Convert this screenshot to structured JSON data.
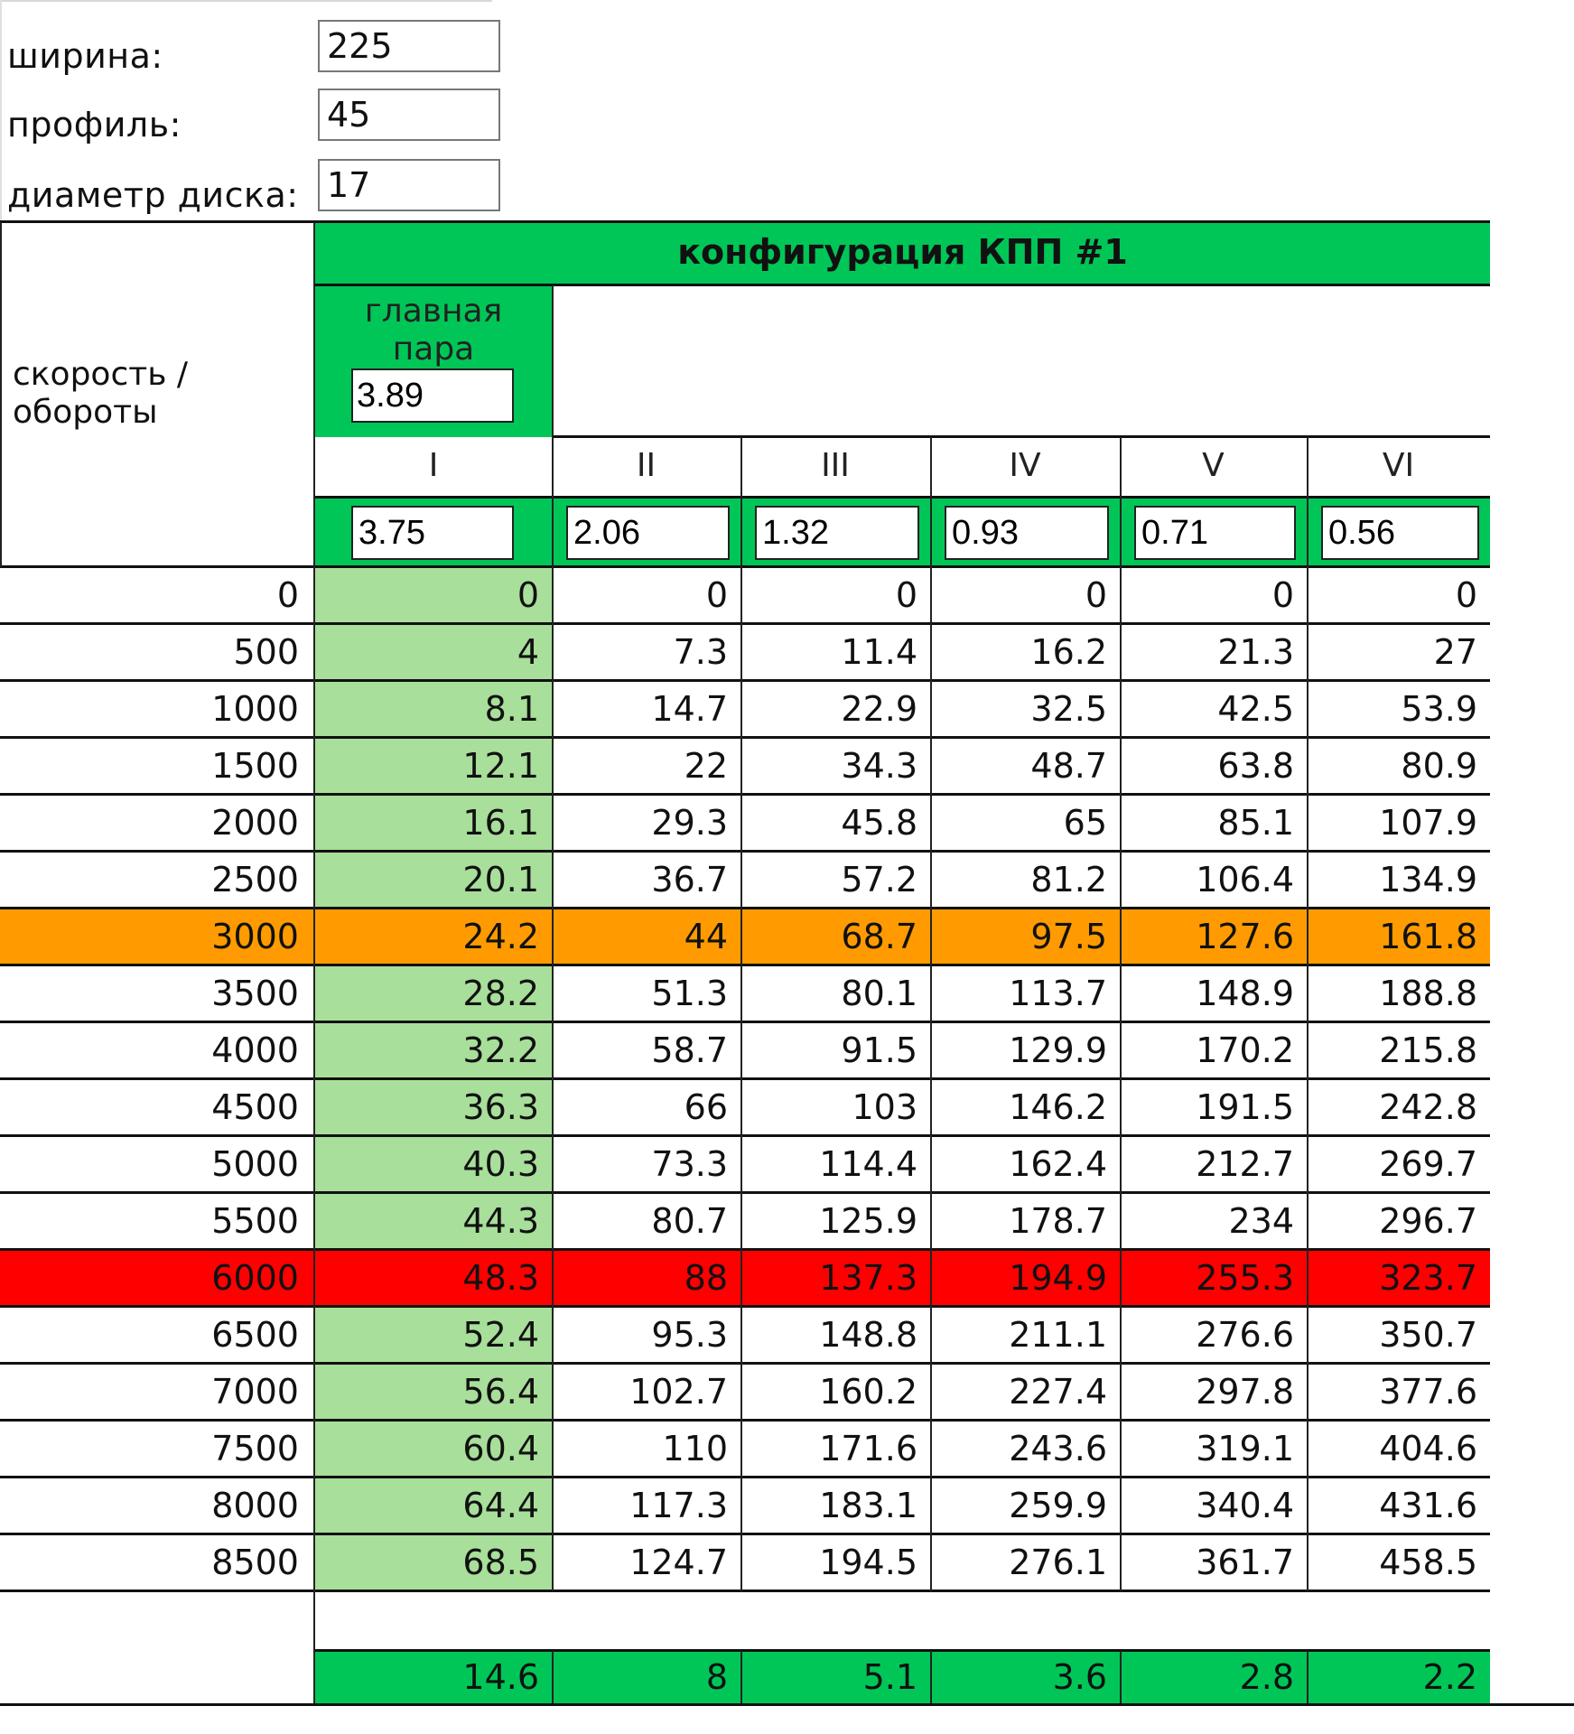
{
  "params": {
    "width_label": "ширина:",
    "width_value": "225",
    "profile_label": "профиль:",
    "profile_value": "45",
    "rim_label": "диаметр диска:",
    "rim_value": "17"
  },
  "table": {
    "title": "конфигурация КПП #1",
    "corner_label_1": "скорость /",
    "corner_label_2": "обороты",
    "main_pair_label_1": "главная",
    "main_pair_label_2": "пара",
    "main_pair_value": "3.89",
    "gears": [
      "I",
      "II",
      "III",
      "IV",
      "V",
      "VI"
    ],
    "gear_ratios": [
      "3.75",
      "2.06",
      "1.32",
      "0.93",
      "0.71",
      "0.56"
    ],
    "rows": [
      {
        "rpm": "0",
        "v": [
          "0",
          "0",
          "0",
          "0",
          "0",
          "0"
        ]
      },
      {
        "rpm": "500",
        "v": [
          "4",
          "7.3",
          "11.4",
          "16.2",
          "21.3",
          "27"
        ]
      },
      {
        "rpm": "1000",
        "v": [
          "8.1",
          "14.7",
          "22.9",
          "32.5",
          "42.5",
          "53.9"
        ]
      },
      {
        "rpm": "1500",
        "v": [
          "12.1",
          "22",
          "34.3",
          "48.7",
          "63.8",
          "80.9"
        ]
      },
      {
        "rpm": "2000",
        "v": [
          "16.1",
          "29.3",
          "45.8",
          "65",
          "85.1",
          "107.9"
        ]
      },
      {
        "rpm": "2500",
        "v": [
          "20.1",
          "36.7",
          "57.2",
          "81.2",
          "106.4",
          "134.9"
        ]
      },
      {
        "rpm": "3000",
        "v": [
          "24.2",
          "44",
          "68.7",
          "97.5",
          "127.6",
          "161.8"
        ],
        "highlight": "orange"
      },
      {
        "rpm": "3500",
        "v": [
          "28.2",
          "51.3",
          "80.1",
          "113.7",
          "148.9",
          "188.8"
        ]
      },
      {
        "rpm": "4000",
        "v": [
          "32.2",
          "58.7",
          "91.5",
          "129.9",
          "170.2",
          "215.8"
        ]
      },
      {
        "rpm": "4500",
        "v": [
          "36.3",
          "66",
          "103",
          "146.2",
          "191.5",
          "242.8"
        ]
      },
      {
        "rpm": "5000",
        "v": [
          "40.3",
          "73.3",
          "114.4",
          "162.4",
          "212.7",
          "269.7"
        ]
      },
      {
        "rpm": "5500",
        "v": [
          "44.3",
          "80.7",
          "125.9",
          "178.7",
          "234",
          "296.7"
        ]
      },
      {
        "rpm": "6000",
        "v": [
          "48.3",
          "88",
          "137.3",
          "194.9",
          "255.3",
          "323.7"
        ],
        "highlight": "red"
      },
      {
        "rpm": "6500",
        "v": [
          "52.4",
          "95.3",
          "148.8",
          "211.1",
          "276.6",
          "350.7"
        ]
      },
      {
        "rpm": "7000",
        "v": [
          "56.4",
          "102.7",
          "160.2",
          "227.4",
          "297.8",
          "377.6"
        ]
      },
      {
        "rpm": "7500",
        "v": [
          "60.4",
          "110",
          "171.6",
          "243.6",
          "319.1",
          "404.6"
        ]
      },
      {
        "rpm": "8000",
        "v": [
          "64.4",
          "117.3",
          "183.1",
          "259.9",
          "340.4",
          "431.6"
        ]
      },
      {
        "rpm": "8500",
        "v": [
          "68.5",
          "124.7",
          "194.5",
          "276.1",
          "361.7",
          "458.5"
        ]
      }
    ],
    "footer": [
      "14.6",
      "8",
      "5.1",
      "3.6",
      "2.8",
      "2.2"
    ]
  },
  "colors": {
    "header_green": "#00c657",
    "first_gear_column": "#a8df9a",
    "highlight_orange": "#ff9b00",
    "highlight_red": "#ff0000"
  }
}
